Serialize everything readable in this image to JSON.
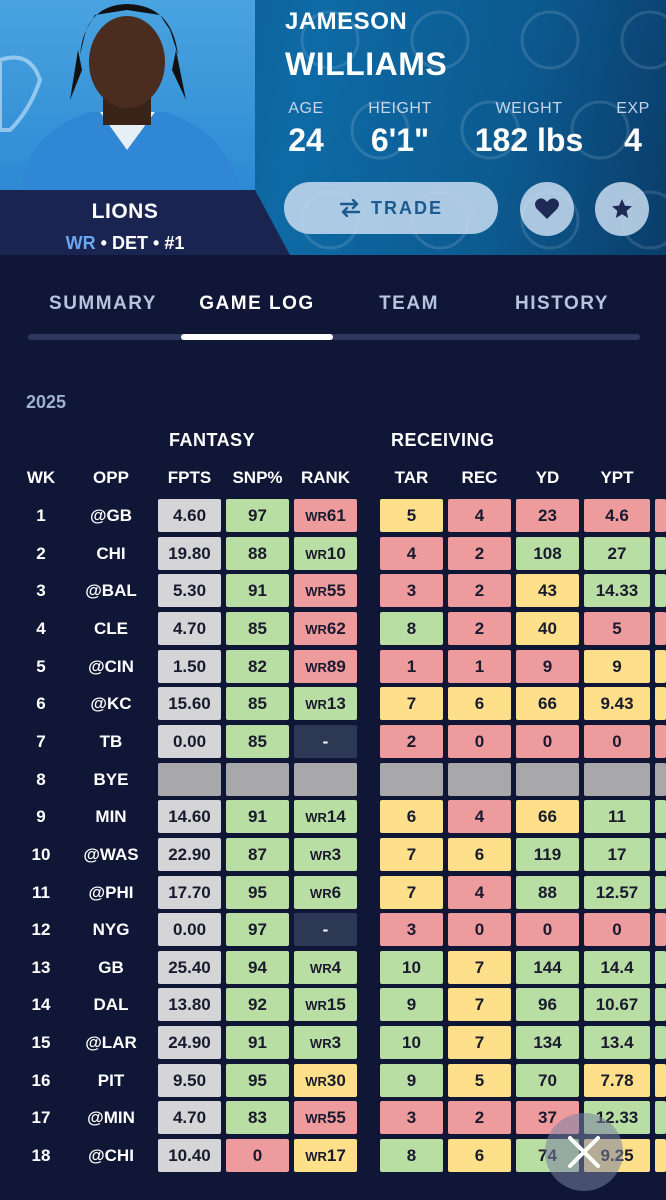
{
  "player": {
    "first_name": "JAMESON",
    "last_name": "WILLIAMS",
    "team": "LIONS",
    "position": "WR",
    "team_abbr": "DET",
    "number": "#1",
    "stats": [
      {
        "label": "AGE",
        "value": "24"
      },
      {
        "label": "HEIGHT",
        "value": "6'1\""
      },
      {
        "label": "WEIGHT",
        "value": "182 lbs"
      },
      {
        "label": "EXP",
        "value": "4"
      }
    ]
  },
  "actions": {
    "trade_label": "TRADE"
  },
  "tabs": [
    {
      "label": "SUMMARY",
      "active": false
    },
    {
      "label": "GAME LOG",
      "active": true
    },
    {
      "label": "TEAM",
      "active": false
    },
    {
      "label": "HISTORY",
      "active": false
    }
  ],
  "game_log": {
    "season": "2025",
    "groups": [
      "FANTASY",
      "RECEIVING"
    ],
    "columns": [
      "WK",
      "OPP",
      "FPTS",
      "SNP%",
      "RANK",
      "TAR",
      "REC",
      "YD",
      "YPT"
    ],
    "rows": [
      {
        "wk": "1",
        "opp": "@GB",
        "fpts": "4.60",
        "snp": "97",
        "rank": "61",
        "tar": "5",
        "rec": "4",
        "yd": "23",
        "ypt": "4.6",
        "c": [
          "green",
          "red",
          "yellow",
          "red",
          "red",
          "red"
        ]
      },
      {
        "wk": "2",
        "opp": "CHI",
        "fpts": "19.80",
        "snp": "88",
        "rank": "10",
        "tar": "4",
        "rec": "2",
        "yd": "108",
        "ypt": "27",
        "c": [
          "green",
          "green",
          "red",
          "red",
          "green",
          "green"
        ]
      },
      {
        "wk": "3",
        "opp": "@BAL",
        "fpts": "5.30",
        "snp": "91",
        "rank": "55",
        "tar": "3",
        "rec": "2",
        "yd": "43",
        "ypt": "14.33",
        "c": [
          "green",
          "red",
          "red",
          "red",
          "yellow",
          "green"
        ]
      },
      {
        "wk": "4",
        "opp": "CLE",
        "fpts": "4.70",
        "snp": "85",
        "rank": "62",
        "tar": "8",
        "rec": "2",
        "yd": "40",
        "ypt": "5",
        "c": [
          "green",
          "red",
          "green",
          "red",
          "yellow",
          "red"
        ]
      },
      {
        "wk": "5",
        "opp": "@CIN",
        "fpts": "1.50",
        "snp": "82",
        "rank": "89",
        "tar": "1",
        "rec": "1",
        "yd": "9",
        "ypt": "9",
        "c": [
          "green",
          "red",
          "red",
          "red",
          "red",
          "yellow"
        ]
      },
      {
        "wk": "6",
        "opp": "@KC",
        "fpts": "15.60",
        "snp": "85",
        "rank": "13",
        "tar": "7",
        "rec": "6",
        "yd": "66",
        "ypt": "9.43",
        "c": [
          "green",
          "green",
          "yellow",
          "yellow",
          "yellow",
          "yellow"
        ]
      },
      {
        "wk": "7",
        "opp": "TB",
        "fpts": "0.00",
        "snp": "85",
        "rank": "-",
        "tar": "2",
        "rec": "0",
        "yd": "0",
        "ypt": "0",
        "c": [
          "green",
          "navy",
          "red",
          "red",
          "red",
          "red"
        ]
      },
      {
        "wk": "8",
        "opp": "BYE",
        "fpts": "",
        "snp": "",
        "rank": "",
        "tar": "",
        "rec": "",
        "yd": "",
        "ypt": "",
        "bye": true,
        "c": [
          "bye",
          "bye",
          "bye",
          "bye",
          "bye",
          "bye"
        ]
      },
      {
        "wk": "9",
        "opp": "MIN",
        "fpts": "14.60",
        "snp": "91",
        "rank": "14",
        "tar": "6",
        "rec": "4",
        "yd": "66",
        "ypt": "11",
        "c": [
          "green",
          "green",
          "yellow",
          "red",
          "yellow",
          "green"
        ]
      },
      {
        "wk": "10",
        "opp": "@WAS",
        "fpts": "22.90",
        "snp": "87",
        "rank": "3",
        "tar": "7",
        "rec": "6",
        "yd": "119",
        "ypt": "17",
        "c": [
          "green",
          "green",
          "yellow",
          "yellow",
          "green",
          "green"
        ]
      },
      {
        "wk": "11",
        "opp": "@PHI",
        "fpts": "17.70",
        "snp": "95",
        "rank": "6",
        "tar": "7",
        "rec": "4",
        "yd": "88",
        "ypt": "12.57",
        "c": [
          "green",
          "green",
          "yellow",
          "red",
          "green",
          "green"
        ]
      },
      {
        "wk": "12",
        "opp": "NYG",
        "fpts": "0.00",
        "snp": "97",
        "rank": "-",
        "tar": "3",
        "rec": "0",
        "yd": "0",
        "ypt": "0",
        "c": [
          "green",
          "navy",
          "red",
          "red",
          "red",
          "red"
        ]
      },
      {
        "wk": "13",
        "opp": "GB",
        "fpts": "25.40",
        "snp": "94",
        "rank": "4",
        "tar": "10",
        "rec": "7",
        "yd": "144",
        "ypt": "14.4",
        "c": [
          "green",
          "green",
          "green",
          "yellow",
          "green",
          "green"
        ]
      },
      {
        "wk": "14",
        "opp": "DAL",
        "fpts": "13.80",
        "snp": "92",
        "rank": "15",
        "tar": "9",
        "rec": "7",
        "yd": "96",
        "ypt": "10.67",
        "c": [
          "green",
          "green",
          "green",
          "yellow",
          "green",
          "green"
        ]
      },
      {
        "wk": "15",
        "opp": "@LAR",
        "fpts": "24.90",
        "snp": "91",
        "rank": "3",
        "tar": "10",
        "rec": "7",
        "yd": "134",
        "ypt": "13.4",
        "c": [
          "green",
          "green",
          "green",
          "yellow",
          "green",
          "green"
        ]
      },
      {
        "wk": "16",
        "opp": "PIT",
        "fpts": "9.50",
        "snp": "95",
        "rank": "30",
        "tar": "9",
        "rec": "5",
        "yd": "70",
        "ypt": "7.78",
        "c": [
          "green",
          "yellow",
          "green",
          "yellow",
          "green",
          "yellow"
        ]
      },
      {
        "wk": "17",
        "opp": "@MIN",
        "fpts": "4.70",
        "snp": "83",
        "rank": "55",
        "tar": "3",
        "rec": "2",
        "yd": "37",
        "ypt": "12.33",
        "c": [
          "green",
          "red",
          "red",
          "red",
          "red",
          "green"
        ]
      },
      {
        "wk": "18",
        "opp": "@CHI",
        "fpts": "10.40",
        "snp": "0",
        "rank": "17",
        "tar": "8",
        "rec": "6",
        "yd": "74",
        "ypt": "9.25",
        "c": [
          "red",
          "yellow",
          "green",
          "yellow",
          "green",
          "yellow"
        ]
      }
    ]
  },
  "colors": {
    "green": "#b9dea3",
    "red": "#ee9b9e",
    "yellow": "#fde089",
    "gray": "#d5d5d8",
    "navy": "#2c3854"
  }
}
